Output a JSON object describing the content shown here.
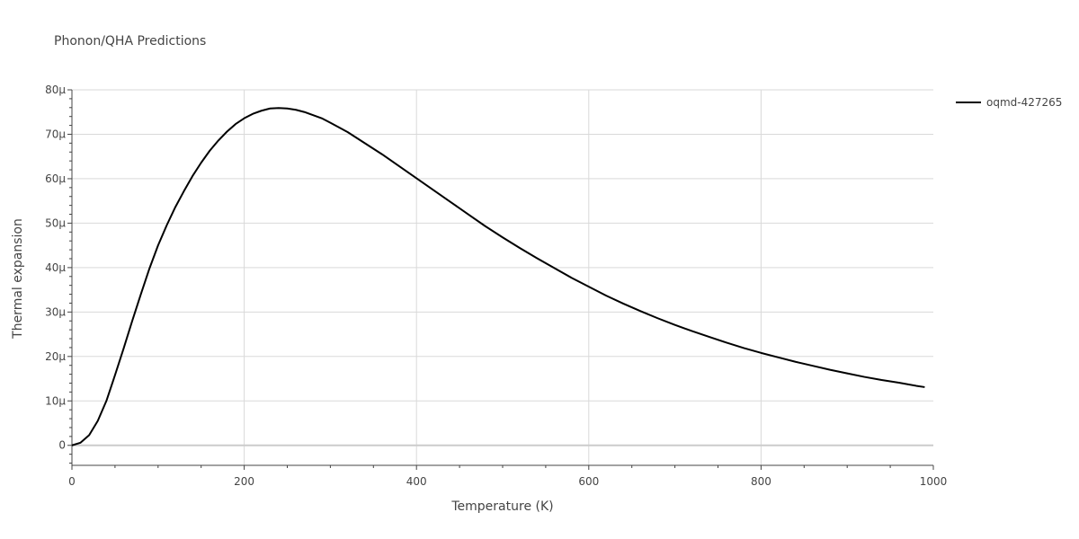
{
  "chart_data": {
    "type": "line",
    "title": "Phonon/QHA Predictions",
    "xlabel": "Temperature (K)",
    "ylabel": "Thermal expansion",
    "xlim": [
      0,
      1000
    ],
    "ylim": [
      -4.5e-06,
      8e-05
    ],
    "grid": true,
    "legend_position": "top-right",
    "x_ticks": [
      {
        "value": 0,
        "label": "0"
      },
      {
        "value": 200,
        "label": "200"
      },
      {
        "value": 400,
        "label": "400"
      },
      {
        "value": 600,
        "label": "600"
      },
      {
        "value": 800,
        "label": "800"
      },
      {
        "value": 1000,
        "label": "1000"
      }
    ],
    "y_ticks": [
      {
        "value": 0,
        "label": "0"
      },
      {
        "value": 1e-05,
        "label": "10μ"
      },
      {
        "value": 2e-05,
        "label": "20μ"
      },
      {
        "value": 3e-05,
        "label": "30μ"
      },
      {
        "value": 4e-05,
        "label": "40μ"
      },
      {
        "value": 5e-05,
        "label": "50μ"
      },
      {
        "value": 6e-05,
        "label": "60μ"
      },
      {
        "value": 7e-05,
        "label": "70μ"
      },
      {
        "value": 8e-05,
        "label": "80μ"
      }
    ],
    "series": [
      {
        "name": "oqmd-427265",
        "color": "#000000",
        "x": [
          0,
          10,
          20,
          30,
          40,
          50,
          60,
          70,
          80,
          90,
          100,
          110,
          120,
          130,
          140,
          150,
          160,
          170,
          180,
          190,
          200,
          210,
          220,
          230,
          240,
          250,
          260,
          270,
          280,
          290,
          300,
          320,
          340,
          360,
          380,
          400,
          420,
          440,
          460,
          480,
          500,
          520,
          540,
          560,
          580,
          600,
          620,
          640,
          660,
          680,
          700,
          720,
          740,
          760,
          780,
          800,
          820,
          840,
          860,
          880,
          900,
          920,
          940,
          960,
          980,
          990
        ],
        "y": [
          0,
          6e-07,
          2.3e-06,
          5.5e-06,
          1e-05,
          1.58e-05,
          2.18e-05,
          2.8e-05,
          3.4e-05,
          3.98e-05,
          4.5e-05,
          4.95e-05,
          5.36e-05,
          5.72e-05,
          6.06e-05,
          6.36e-05,
          6.63e-05,
          6.86e-05,
          7.06e-05,
          7.23e-05,
          7.36e-05,
          7.46e-05,
          7.53e-05,
          7.58e-05,
          7.59e-05,
          7.58e-05,
          7.55e-05,
          7.5e-05,
          7.43e-05,
          7.36e-05,
          7.26e-05,
          7.05e-05,
          6.8e-05,
          6.55e-05,
          6.28e-05,
          6.01e-05,
          5.74e-05,
          5.47e-05,
          5.2e-05,
          4.93e-05,
          4.68e-05,
          4.44e-05,
          4.21e-05,
          3.99e-05,
          3.77e-05,
          3.57e-05,
          3.37e-05,
          3.19e-05,
          3.02e-05,
          2.86e-05,
          2.71e-05,
          2.57e-05,
          2.44e-05,
          2.31e-05,
          2.19e-05,
          2.08e-05,
          1.98e-05,
          1.88e-05,
          1.79e-05,
          1.7e-05,
          1.62e-05,
          1.54e-05,
          1.47e-05,
          1.41e-05,
          1.34e-05,
          1.31e-05
        ]
      }
    ]
  }
}
